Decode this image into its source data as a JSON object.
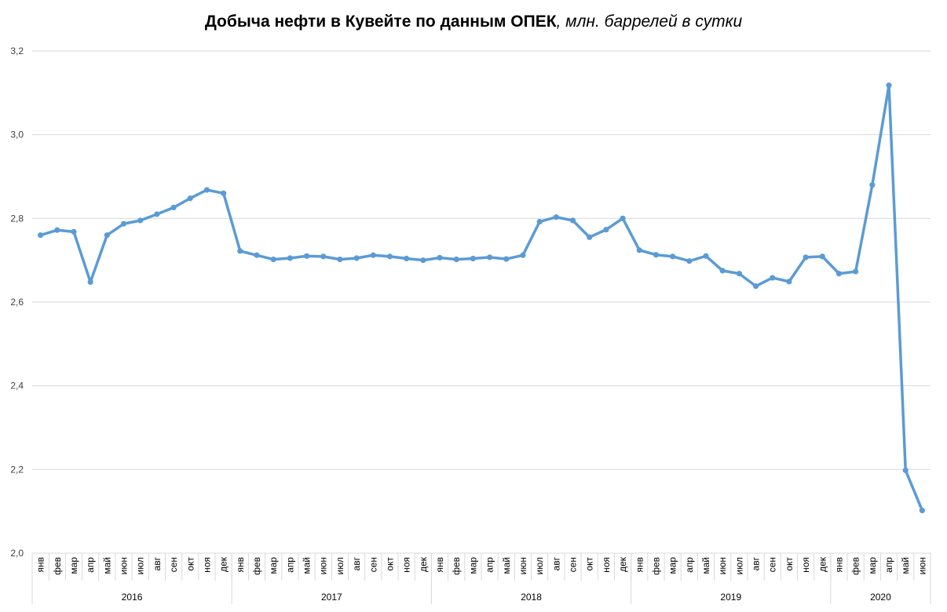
{
  "chart_data": {
    "type": "line",
    "title": "Добыча нефти в Кувейте по данным ОПЕК",
    "title_unit": ", млн. баррелей в сутки",
    "xlabel": "",
    "ylabel": "",
    "ylim": [
      2.0,
      3.2
    ],
    "yticks": [
      "2,0",
      "2,2",
      "2,4",
      "2,6",
      "2,8",
      "3,0",
      "3,2"
    ],
    "ytick_values": [
      2.0,
      2.2,
      2.4,
      2.6,
      2.8,
      3.0,
      3.2
    ],
    "grid": true,
    "legend": "none",
    "line_color": "#5B9BD5",
    "years": [
      {
        "label": "2016",
        "months": 12
      },
      {
        "label": "2017",
        "months": 12
      },
      {
        "label": "2018",
        "months": 12
      },
      {
        "label": "2019",
        "months": 12
      },
      {
        "label": "2020",
        "months": 6
      }
    ],
    "categories": [
      "янв",
      "фев",
      "мар",
      "апр",
      "май",
      "июн",
      "июл",
      "авг",
      "сен",
      "окт",
      "ноя",
      "дек",
      "янв",
      "фев",
      "мар",
      "апр",
      "май",
      "июн",
      "июл",
      "авг",
      "сен",
      "окт",
      "ноя",
      "дек",
      "янв",
      "фев",
      "мар",
      "апр",
      "май",
      "июн",
      "июл",
      "авг",
      "сен",
      "окт",
      "ноя",
      "дек",
      "янв",
      "фев",
      "мар",
      "апр",
      "май",
      "июн",
      "июл",
      "авг",
      "сен",
      "окт",
      "ноя",
      "дек",
      "янв",
      "фев",
      "мар",
      "апр",
      "май",
      "июн"
    ],
    "series": [
      {
        "values": [
          2.76,
          2.772,
          2.768,
          2.648,
          2.76,
          2.787,
          2.795,
          2.81,
          2.826,
          2.848,
          2.868,
          2.86,
          2.722,
          2.712,
          2.702,
          2.705,
          2.71,
          2.709,
          2.702,
          2.705,
          2.712,
          2.709,
          2.704,
          2.7,
          2.706,
          2.702,
          2.704,
          2.707,
          2.703,
          2.712,
          2.792,
          2.803,
          2.795,
          2.755,
          2.773,
          2.8,
          2.724,
          2.713,
          2.709,
          2.698,
          2.71,
          2.675,
          2.668,
          2.638,
          2.658,
          2.649,
          2.707,
          2.709,
          2.668,
          2.673,
          2.88,
          3.118,
          2.198,
          2.102
        ]
      }
    ]
  }
}
